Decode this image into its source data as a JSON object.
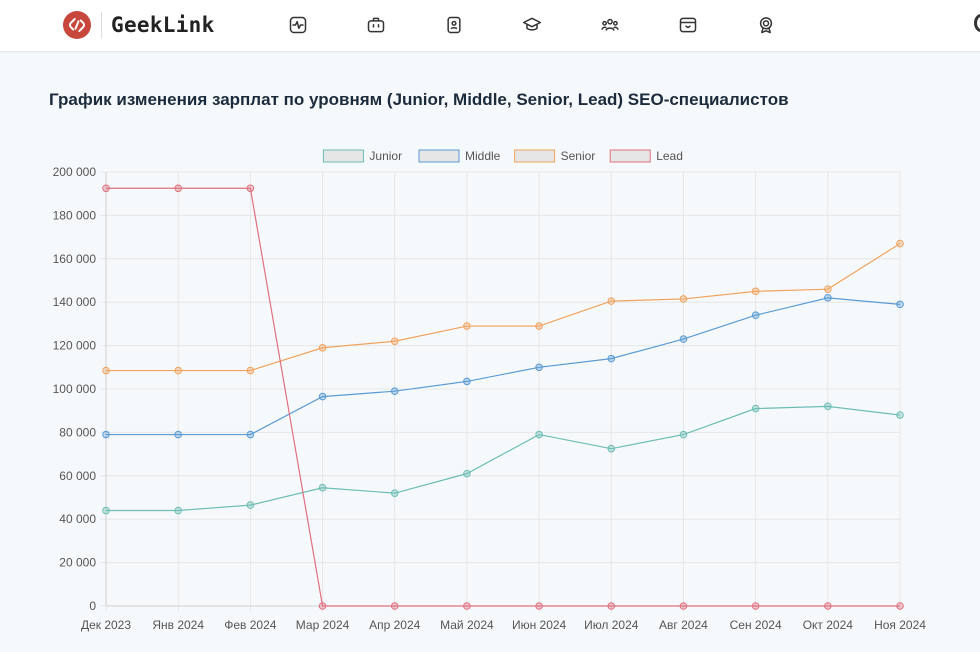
{
  "app": {
    "name": "GeekLink",
    "colors": {
      "brand": "#c8473d"
    }
  },
  "nav": [
    {
      "icon": "activity-icon"
    },
    {
      "icon": "briefcase-icon"
    },
    {
      "icon": "id-badge-icon"
    },
    {
      "icon": "graduation-cap-icon"
    },
    {
      "icon": "users-icon"
    },
    {
      "icon": "store-icon"
    },
    {
      "icon": "award-icon"
    }
  ],
  "page": {
    "title": "График изменения зарплат по уровням (Junior, Middle, Senior, Lead) SEO-специалистов"
  },
  "chart_data": {
    "type": "line",
    "title": "",
    "xlabel": "",
    "ylabel": "",
    "ylim": [
      0,
      200000
    ],
    "ytick_step": 20000,
    "ytick_labels": [
      "0",
      "20 000",
      "40 000",
      "60 000",
      "80 000",
      "100 000",
      "120 000",
      "140 000",
      "160 000",
      "180 000",
      "200 000"
    ],
    "grid": true,
    "legend_position": "top-center",
    "categories": [
      "Дек 2023",
      "Янв 2024",
      "Фев 2024",
      "Мар 2024",
      "Апр 2024",
      "Май 2024",
      "Июн 2024",
      "Июл 2024",
      "Авг 2024",
      "Сен 2024",
      "Окт 2024",
      "Ноя 2024"
    ],
    "series": [
      {
        "name": "Junior",
        "color": "#6dbdb5",
        "values": [
          44000,
          44000,
          46500,
          54500,
          52000,
          61000,
          79000,
          72500,
          79000,
          91000,
          92000,
          88000
        ]
      },
      {
        "name": "Middle",
        "color": "#5a9bd4",
        "values": [
          79000,
          79000,
          79000,
          96500,
          99000,
          103500,
          110000,
          114000,
          123000,
          134000,
          142000,
          139000
        ]
      },
      {
        "name": "Senior",
        "color": "#f0a35e",
        "values": [
          108500,
          108500,
          108500,
          119000,
          122000,
          129000,
          129000,
          140500,
          141500,
          145000,
          146000,
          167000
        ]
      },
      {
        "name": "Lead",
        "color": "#e0707f",
        "values": [
          192500,
          192500,
          192500,
          0,
          0,
          0,
          0,
          0,
          0,
          0,
          0,
          0
        ]
      }
    ]
  }
}
